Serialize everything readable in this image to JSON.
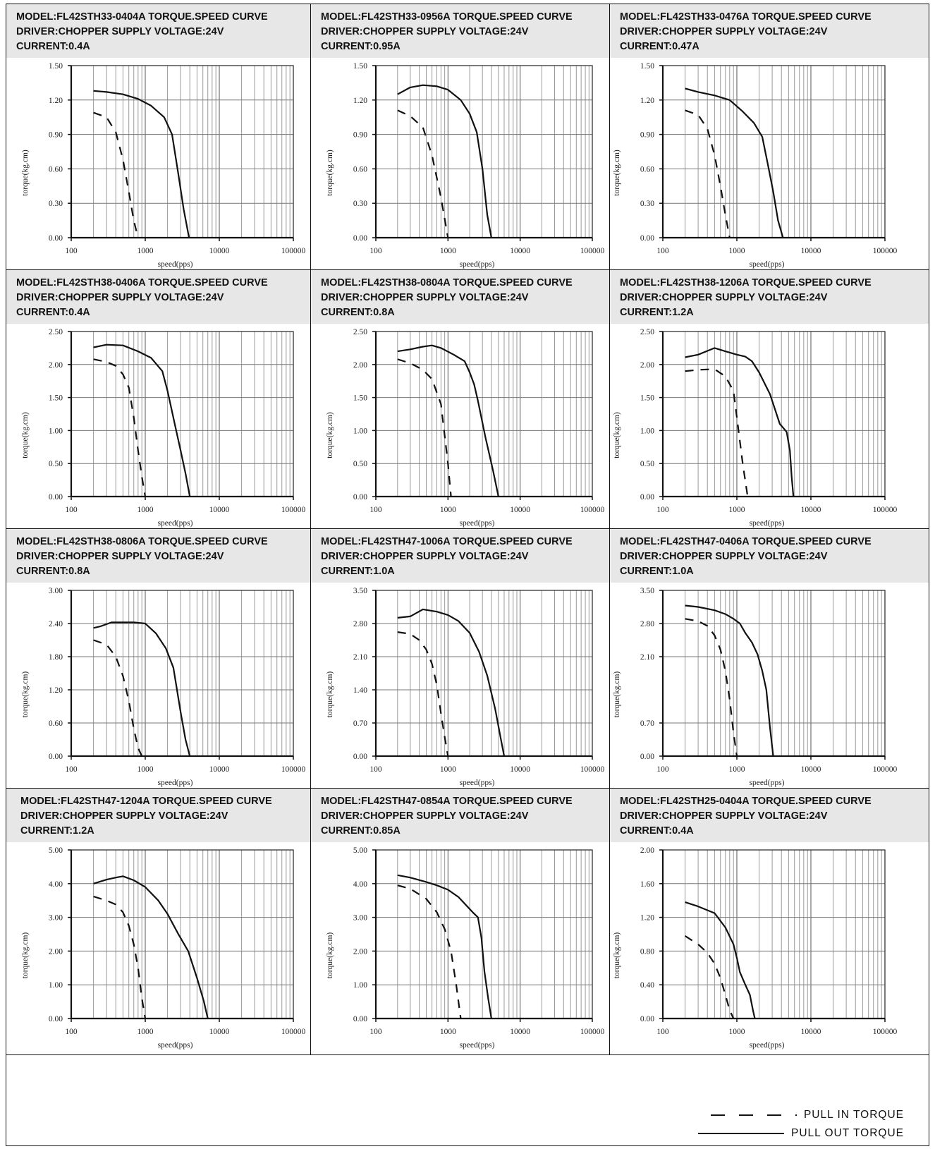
{
  "legend": {
    "pull_in": "PULL  IN  TORQUE",
    "pull_out": "PULL OUT TORQUE"
  },
  "chart_data": [
    {
      "type": "line",
      "header": [
        "MODEL:FL42STH33-0404A   TORQUE.SPEED CURVE",
        "DRIVER:CHOPPER SUPPLY VOLTAGE:24V",
        "CURRENT:0.4A"
      ],
      "xlabel": "speed(pps)",
      "ylabel": "torque(kg.cm)",
      "xscale": "log",
      "xlim": [
        100,
        100000
      ],
      "xticks": [
        "100",
        "1000",
        "10000",
        "100000"
      ],
      "ylim": [
        0,
        1.5
      ],
      "yticks": [
        "0.00",
        "0.30",
        "0.60",
        "0.90",
        "1.20",
        "1.50"
      ],
      "series": [
        {
          "name": "PULL OUT TORQUE",
          "style": "solid",
          "x": [
            200,
            300,
            500,
            800,
            1200,
            1800,
            2300,
            2800,
            3300,
            3900
          ],
          "y": [
            1.28,
            1.27,
            1.25,
            1.21,
            1.15,
            1.05,
            0.9,
            0.55,
            0.25,
            0.0
          ]
        },
        {
          "name": "PULL IN TORQUE",
          "style": "dashed",
          "x": [
            200,
            300,
            400,
            500,
            600,
            700,
            800
          ],
          "y": [
            1.09,
            1.05,
            0.92,
            0.68,
            0.4,
            0.15,
            0.0
          ]
        }
      ]
    },
    {
      "type": "line",
      "header": [
        "MODEL:FL42STH33-0956A   TORQUE.SPEED CURVE",
        "DRIVER:CHOPPER SUPPLY VOLTAGE:24V",
        "CURRENT:0.95A"
      ],
      "xlabel": "speed(pps)",
      "ylabel": "torque(kg.cm)",
      "xscale": "log",
      "xlim": [
        100,
        100000
      ],
      "xticks": [
        "100",
        "1000",
        "10000",
        "100000"
      ],
      "ylim": [
        0,
        1.5
      ],
      "yticks": [
        "0.00",
        "0.30",
        "0.60",
        "0.90",
        "1.20",
        "1.50"
      ],
      "series": [
        {
          "name": "PULL OUT TORQUE",
          "style": "solid",
          "x": [
            200,
            300,
            450,
            700,
            1000,
            1500,
            2000,
            2500,
            3000,
            3500,
            4000
          ],
          "y": [
            1.25,
            1.31,
            1.33,
            1.32,
            1.29,
            1.2,
            1.08,
            0.92,
            0.6,
            0.2,
            0.0
          ]
        },
        {
          "name": "PULL IN TORQUE",
          "style": "dashed",
          "x": [
            200,
            300,
            450,
            600,
            800,
            1000
          ],
          "y": [
            1.11,
            1.06,
            0.96,
            0.72,
            0.35,
            0.0
          ]
        }
      ]
    },
    {
      "type": "line",
      "header": [
        "MODEL:FL42STH33-0476A   TORQUE.SPEED CURVE",
        "DRIVER:CHOPPER SUPPLY VOLTAGE:24V",
        "CURRENT:0.47A"
      ],
      "xlabel": "speed(pps)",
      "ylabel": "torque(kg.cm)",
      "xscale": "log",
      "xlim": [
        100,
        100000
      ],
      "xticks": [
        "100",
        "1000",
        "10000",
        "100000"
      ],
      "ylim": [
        0,
        1.5
      ],
      "yticks": [
        "0.00",
        "0.30",
        "0.60",
        "0.90",
        "1.20",
        "1.50"
      ],
      "series": [
        {
          "name": "PULL OUT TORQUE",
          "style": "solid",
          "x": [
            200,
            300,
            500,
            800,
            1200,
            1700,
            2200,
            2600,
            3100,
            3600,
            4200
          ],
          "y": [
            1.3,
            1.27,
            1.24,
            1.2,
            1.1,
            1.0,
            0.88,
            0.65,
            0.4,
            0.15,
            0.0
          ]
        },
        {
          "name": "PULL IN TORQUE",
          "style": "dashed",
          "x": [
            200,
            300,
            400,
            500,
            600,
            700,
            800
          ],
          "y": [
            1.11,
            1.07,
            0.95,
            0.72,
            0.45,
            0.2,
            0.0
          ]
        }
      ]
    },
    {
      "type": "line",
      "header": [
        "MODEL:FL42STH38-0406A   TORQUE.SPEED CURVE",
        "DRIVER:CHOPPER SUPPLY VOLTAGE:24V",
        "CURRENT:0.4A"
      ],
      "xlabel": "speed(pps)",
      "ylabel": "torque(kg.cm)",
      "xscale": "log",
      "xlim": [
        100,
        100000
      ],
      "xticks": [
        "100",
        "1000",
        "10000",
        "100000"
      ],
      "ylim": [
        0,
        2.5
      ],
      "yticks": [
        "0.00",
        "0.50",
        "1.00",
        "1.50",
        "2.00",
        "2.50"
      ],
      "series": [
        {
          "name": "PULL OUT TORQUE",
          "style": "solid",
          "x": [
            200,
            300,
            500,
            800,
            1200,
            1700,
            2000,
            2500,
            3000,
            3500,
            4000
          ],
          "y": [
            2.26,
            2.3,
            2.29,
            2.2,
            2.1,
            1.9,
            1.6,
            1.1,
            0.7,
            0.35,
            0.0
          ]
        },
        {
          "name": "PULL IN TORQUE",
          "style": "dashed",
          "x": [
            200,
            300,
            400,
            500,
            600,
            700,
            800,
            900,
            1000
          ],
          "y": [
            2.08,
            2.04,
            1.98,
            1.85,
            1.65,
            1.2,
            0.7,
            0.3,
            0.0
          ]
        }
      ]
    },
    {
      "type": "line",
      "header": [
        "MODEL:FL42STH38-0804A  TORQUE.SPEED CURVE",
        "DRIVER:CHOPPER SUPPLY VOLTAGE:24V",
        "CURRENT:0.8A"
      ],
      "xlabel": "speed(pps)",
      "ylabel": "torque(kg.cm)",
      "xscale": "log",
      "xlim": [
        100,
        100000
      ],
      "xticks": [
        "100",
        "1000",
        "10000",
        "100000"
      ],
      "ylim": [
        0,
        2.5
      ],
      "yticks": [
        "0.00",
        "0.50",
        "1.00",
        "1.50",
        "2.00",
        "2.50"
      ],
      "series": [
        {
          "name": "PULL OUT TORQUE",
          "style": "solid",
          "x": [
            200,
            300,
            450,
            600,
            800,
            1200,
            1700,
            2000,
            2300,
            2600,
            3300,
            4200,
            5000
          ],
          "y": [
            2.2,
            2.23,
            2.27,
            2.29,
            2.25,
            2.15,
            2.05,
            1.88,
            1.7,
            1.45,
            0.9,
            0.4,
            0.0
          ]
        },
        {
          "name": "PULL IN TORQUE",
          "style": "dashed",
          "x": [
            200,
            300,
            450,
            600,
            800,
            1000,
            1100
          ],
          "y": [
            2.08,
            2.02,
            1.92,
            1.78,
            1.4,
            0.5,
            0.0
          ]
        }
      ]
    },
    {
      "type": "line",
      "header": [
        "MODEL:FL42STH38-1206A  TORQUE.SPEED CURVE",
        "DRIVER:CHOPPER SUPPLY VOLTAGE:24V",
        "CURRENT:1.2A"
      ],
      "xlabel": "speed(pps)",
      "ylabel": "torque(kg.cm)",
      "xscale": "log",
      "xlim": [
        100,
        100000
      ],
      "xticks": [
        "100",
        "1000",
        "10000",
        "100000"
      ],
      "ylim": [
        0,
        2.5
      ],
      "yticks": [
        "0.00",
        "0.50",
        "1.00",
        "1.50",
        "2.00",
        "2.50"
      ],
      "series": [
        {
          "name": "PULL OUT TORQUE",
          "style": "solid",
          "x": [
            200,
            300,
            500,
            700,
            1000,
            1300,
            1600,
            2000,
            2800,
            3800,
            4700,
            5200,
            5500,
            5800
          ],
          "y": [
            2.11,
            2.15,
            2.25,
            2.2,
            2.15,
            2.12,
            2.05,
            1.88,
            1.55,
            1.1,
            0.98,
            0.7,
            0.3,
            0.0
          ]
        },
        {
          "name": "PULL IN TORQUE",
          "style": "dashed",
          "x": [
            200,
            300,
            500,
            700,
            900,
            1000,
            1200,
            1400
          ],
          "y": [
            1.9,
            1.92,
            1.93,
            1.82,
            1.6,
            1.2,
            0.5,
            0.0
          ]
        }
      ]
    },
    {
      "type": "line",
      "header": [
        "MODEL:FL42STH38-0806A   TORQUE.SPEED CURVE",
        "DRIVER:CHOPPER SUPPLY VOLTAGE:24V",
        "CURRENT:0.8A"
      ],
      "xlabel": "speed(pps)",
      "ylabel": "torque(kg.cm)",
      "xscale": "log",
      "xlim": [
        100,
        100000
      ],
      "xticks": [
        "100",
        "1000",
        "10000",
        "100000"
      ],
      "ylim": [
        0,
        3.0
      ],
      "yticks": [
        "0.00",
        "0.60",
        "1.20",
        "1.80",
        "2.40",
        "3.00"
      ],
      "series": [
        {
          "name": "PULL OUT TORQUE",
          "style": "solid",
          "x": [
            200,
            250,
            350,
            500,
            700,
            1000,
            1400,
            1900,
            2400,
            3000,
            3500,
            4000
          ],
          "y": [
            2.32,
            2.35,
            2.42,
            2.42,
            2.42,
            2.4,
            2.22,
            1.95,
            1.6,
            0.8,
            0.3,
            0.0
          ]
        },
        {
          "name": "PULL IN TORQUE",
          "style": "dashed",
          "x": [
            200,
            300,
            400,
            500,
            600,
            700,
            800,
            900
          ],
          "y": [
            2.1,
            2.02,
            1.8,
            1.45,
            1.0,
            0.5,
            0.15,
            0.0
          ]
        }
      ]
    },
    {
      "type": "line",
      "header": [
        "MODEL:FL42STH47-1006A  TORQUE.SPEED CURVE",
        "DRIVER:CHOPPER SUPPLY VOLTAGE:24V",
        "CURRENT:1.0A"
      ],
      "xlabel": "speed(pps)",
      "ylabel": "torque(kg.cm)",
      "xscale": "log",
      "xlim": [
        100,
        100000
      ],
      "xticks": [
        "100",
        "1000",
        "10000",
        "100000"
      ],
      "ylim": [
        0,
        3.5
      ],
      "yticks": [
        "0.00",
        "0.70",
        "1.40",
        "2.10",
        "2.80",
        "3.50"
      ],
      "series": [
        {
          "name": "PULL OUT TORQUE",
          "style": "solid",
          "x": [
            200,
            300,
            450,
            700,
            1000,
            1400,
            2000,
            2700,
            3500,
            4500,
            5500,
            6000
          ],
          "y": [
            2.92,
            2.95,
            3.1,
            3.05,
            2.98,
            2.85,
            2.6,
            2.2,
            1.7,
            1.0,
            0.3,
            0.0
          ]
        },
        {
          "name": "PULL IN TORQUE",
          "style": "dashed",
          "x": [
            200,
            300,
            400,
            500,
            600,
            700,
            800,
            900,
            1000
          ],
          "y": [
            2.62,
            2.58,
            2.45,
            2.25,
            1.95,
            1.5,
            0.9,
            0.4,
            0.0
          ]
        }
      ]
    },
    {
      "type": "line",
      "header": [
        "MODEL:FL42STH47-0406A  TORQUE.SPEED CURVE",
        "DRIVER:CHOPPER SUPPLY VOLTAGE:24V",
        "CURRENT:1.0A"
      ],
      "xlabel": "speed(pps)",
      "ylabel": "torque(kg.cm)",
      "xscale": "log",
      "xlim": [
        100,
        100000
      ],
      "xticks": [
        "100",
        "1000",
        "10000",
        "100000"
      ],
      "ylim": [
        0,
        3.5
      ],
      "yticks": [
        "0.00",
        "0.70",
        "2.10",
        "2.80",
        "3.50"
      ],
      "ytick_values": [
        0,
        0.7,
        2.1,
        2.8,
        3.5
      ],
      "series": [
        {
          "name": "PULL OUT TORQUE",
          "style": "solid",
          "x": [
            200,
            300,
            500,
            700,
            900,
            1100,
            1300,
            1600,
            1900,
            2200,
            2500,
            2800,
            3100
          ],
          "y": [
            3.18,
            3.15,
            3.08,
            3.0,
            2.9,
            2.8,
            2.6,
            2.4,
            2.15,
            1.8,
            1.4,
            0.6,
            0.0
          ]
        },
        {
          "name": "PULL IN TORQUE",
          "style": "dashed",
          "x": [
            200,
            300,
            400,
            500,
            600,
            700,
            800,
            900,
            1000
          ],
          "y": [
            2.9,
            2.85,
            2.75,
            2.55,
            2.25,
            1.8,
            1.2,
            0.5,
            0.0
          ]
        }
      ]
    },
    {
      "type": "line",
      "header": [
        "MODEL:FL42STH47-1204A  TORQUE.SPEED CURVE",
        "DRIVER:CHOPPER SUPPLY VOLTAGE:24V",
        "CURRENT:1.2A"
      ],
      "xlabel": "speed(pps)",
      "ylabel": "torque(kg.cm)",
      "xscale": "log",
      "xlim": [
        100,
        100000
      ],
      "xticks": [
        "100",
        "1000",
        "10000",
        "100000"
      ],
      "ylim": [
        0,
        5.0
      ],
      "yticks": [
        "0.00",
        "1.00",
        "2.00",
        "3.00",
        "4.00",
        "5.00"
      ],
      "series": [
        {
          "name": "PULL OUT TORQUE",
          "style": "solid",
          "x": [
            200,
            300,
            400,
            500,
            700,
            1000,
            1500,
            2000,
            2800,
            3800,
            5000,
            6200,
            7000
          ],
          "y": [
            4.0,
            4.12,
            4.18,
            4.22,
            4.1,
            3.9,
            3.5,
            3.1,
            2.5,
            2.0,
            1.2,
            0.5,
            0.0
          ]
        },
        {
          "name": "PULL IN TORQUE",
          "style": "dashed",
          "x": [
            200,
            300,
            400,
            500,
            600,
            700,
            800,
            900,
            1000
          ],
          "y": [
            3.62,
            3.5,
            3.38,
            3.15,
            2.75,
            2.2,
            1.5,
            0.6,
            0.0
          ]
        }
      ]
    },
    {
      "type": "line",
      "header": [
        "MODEL:FL42STH47-0854A  TORQUE.SPEED CURVE",
        "DRIVER:CHOPPER SUPPLY VOLTAGE:24V",
        "CURRENT:0.85A"
      ],
      "xlabel": "speed(pps)",
      "ylabel": "torque(kg.cm)",
      "xscale": "log",
      "xlim": [
        100,
        100000
      ],
      "xticks": [
        "100",
        "1000",
        "10000",
        "100000"
      ],
      "ylim": [
        0,
        5.0
      ],
      "yticks": [
        "0.00",
        "1.00",
        "2.00",
        "3.00",
        "4.00",
        "5.00"
      ],
      "series": [
        {
          "name": "PULL OUT TORQUE",
          "style": "solid",
          "x": [
            200,
            300,
            500,
            700,
            1000,
            1400,
            1800,
            2200,
            2600,
            2900,
            3200,
            3600,
            4000
          ],
          "y": [
            4.25,
            4.18,
            4.05,
            3.95,
            3.82,
            3.6,
            3.35,
            3.15,
            3.0,
            2.4,
            1.4,
            0.6,
            0.0
          ]
        },
        {
          "name": "PULL IN TORQUE",
          "style": "dashed",
          "x": [
            200,
            300,
            500,
            700,
            900,
            1100,
            1300,
            1500
          ],
          "y": [
            3.95,
            3.85,
            3.55,
            3.15,
            2.65,
            2.0,
            1.0,
            0.0
          ]
        }
      ]
    },
    {
      "type": "line",
      "header": [
        "MODEL:FL42STH25-0404A  TORQUE.SPEED CURVE",
        "DRIVER:CHOPPER SUPPLY VOLTAGE:24V",
        "CURRENT:0.4A"
      ],
      "xlabel": "speed(pps)",
      "ylabel": "torque(kg.cm)",
      "xscale": "log",
      "xlim": [
        100,
        100000
      ],
      "xticks": [
        "100",
        "1000",
        "10000",
        "100000"
      ],
      "ylim": [
        0,
        2.0
      ],
      "yticks": [
        "0.00",
        "0.40",
        "0.80",
        "1.20",
        "1.60",
        "2.00"
      ],
      "series": [
        {
          "name": "PULL OUT TORQUE",
          "style": "solid",
          "x": [
            200,
            300,
            500,
            700,
            900,
            1000,
            1100,
            1300,
            1500,
            1650,
            1750
          ],
          "y": [
            1.38,
            1.33,
            1.25,
            1.08,
            0.88,
            0.72,
            0.55,
            0.4,
            0.28,
            0.1,
            0.0
          ]
        },
        {
          "name": "PULL IN TORQUE",
          "style": "dashed",
          "x": [
            200,
            300,
            400,
            500,
            600,
            700,
            800,
            900
          ],
          "y": [
            0.98,
            0.88,
            0.78,
            0.65,
            0.48,
            0.28,
            0.1,
            0.0
          ]
        }
      ]
    }
  ]
}
